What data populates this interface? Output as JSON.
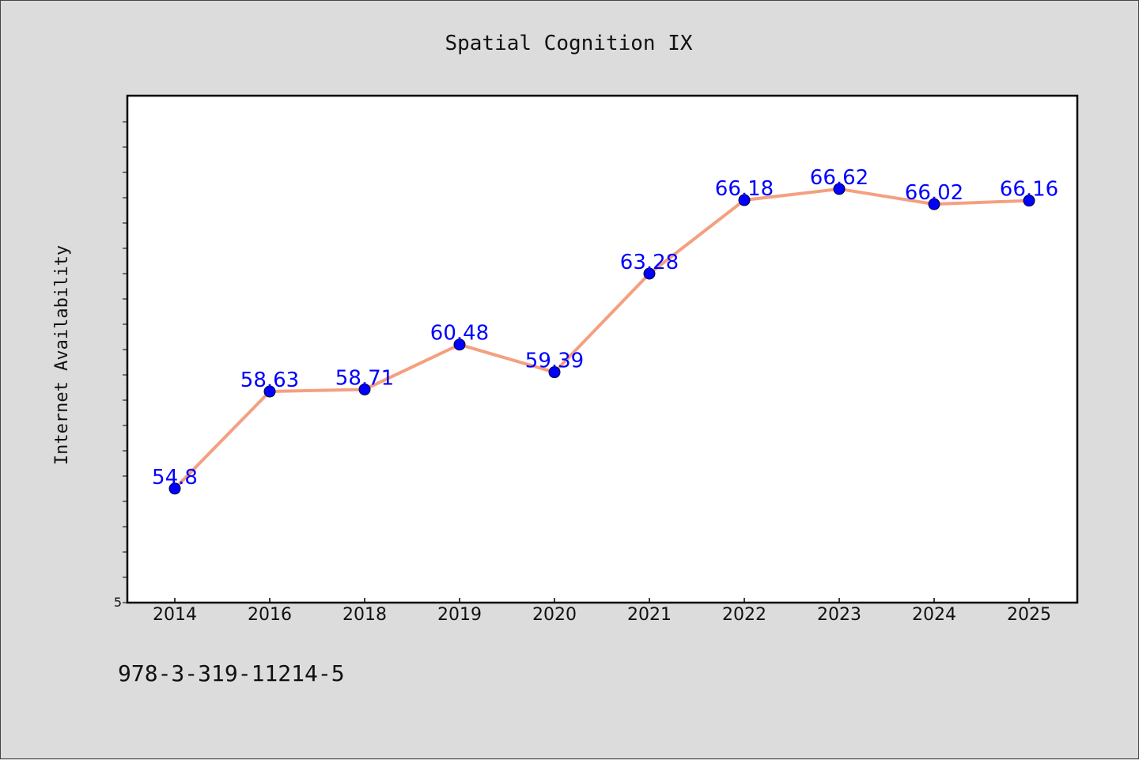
{
  "chart_data": {
    "type": "line",
    "title": "Spatial Cognition IX",
    "xlabel": "",
    "ylabel": "Internet Availability",
    "categories": [
      "2014",
      "2016",
      "2018",
      "2019",
      "2020",
      "2021",
      "2022",
      "2023",
      "2024",
      "2025"
    ],
    "series": [
      {
        "values": [
          54.8,
          58.63,
          58.71,
          60.48,
          59.39,
          63.28,
          66.18,
          66.62,
          66.02,
          66.16
        ],
        "data_labels": [
          "54.8",
          "58.63",
          "58.71",
          "60.48",
          "59.39",
          "63.28",
          "66.18",
          "66.62",
          "66.02",
          "66.16"
        ],
        "line_color": "#f4a080",
        "marker_color": "#0000ff",
        "label_color": "#0000ff"
      }
    ],
    "ylim": [
      50.3,
      70.3
    ],
    "y_tick_label": "5",
    "grid": false,
    "legend": "none"
  },
  "footer": {
    "isbn": "978-3-319-11214-5"
  },
  "colors": {
    "background": "#dcdcdc",
    "plot_background": "#ffffff",
    "axis": "#000000"
  }
}
